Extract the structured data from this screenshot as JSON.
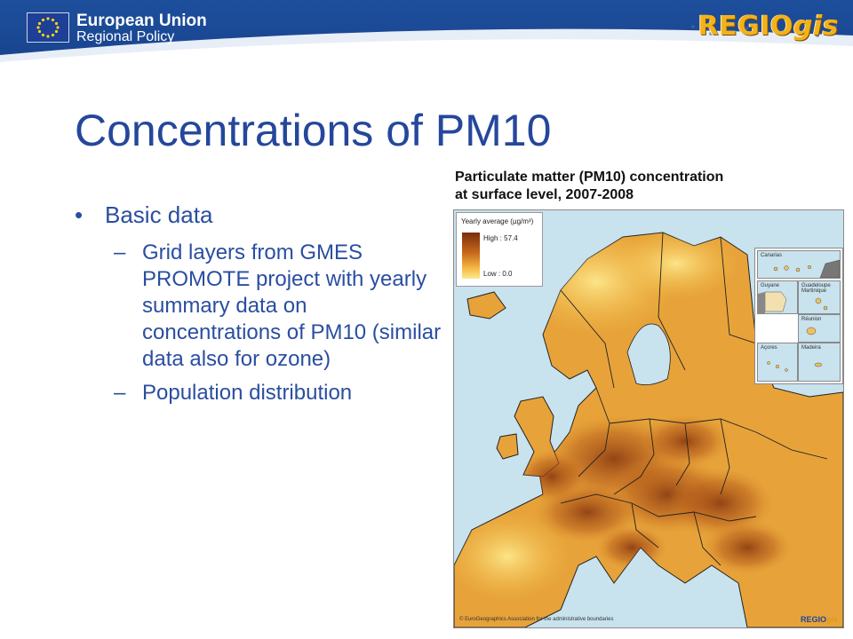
{
  "header": {
    "org_title": "European Union",
    "org_subtitle": "Regional Policy",
    "logo_main": "REGIO",
    "logo_suffix": "gis",
    "eu_flag_icon": "eu-flag-icon"
  },
  "slide": {
    "title": "Concentrations of PM10",
    "bullets": [
      {
        "text": "Basic data",
        "sub": [
          "Grid layers from GMES PROMOTE project with yearly summary data on concentrations of PM10 (similar data also for ozone)",
          "Population distribution"
        ]
      }
    ]
  },
  "map": {
    "title_line1": "Particulate matter (PM10) concentration",
    "title_line2": "at surface level, 2007-2008",
    "legend": {
      "title": "Yearly average (µg/m³)",
      "high": "High : 57.4",
      "low": "Low : 0.0",
      "high_value": 57.4,
      "low_value": 0.0,
      "colors": [
        "#7a2c0a",
        "#c96a1d",
        "#f3b33e",
        "#fde88c"
      ]
    },
    "insets": [
      "Canarias",
      "Guyane",
      "Guadeloupe Martinique",
      "Réunion",
      "Açores",
      "Madeira"
    ],
    "copyright": "© EuroGeographics Association for the administrative boundaries",
    "logo_main": "REGIO",
    "logo_suffix": "gis",
    "colors": {
      "sea": "#c8e2ee",
      "land_base": "#e7a33a",
      "hotspot": "#8a3a10",
      "border": "#222222"
    }
  }
}
